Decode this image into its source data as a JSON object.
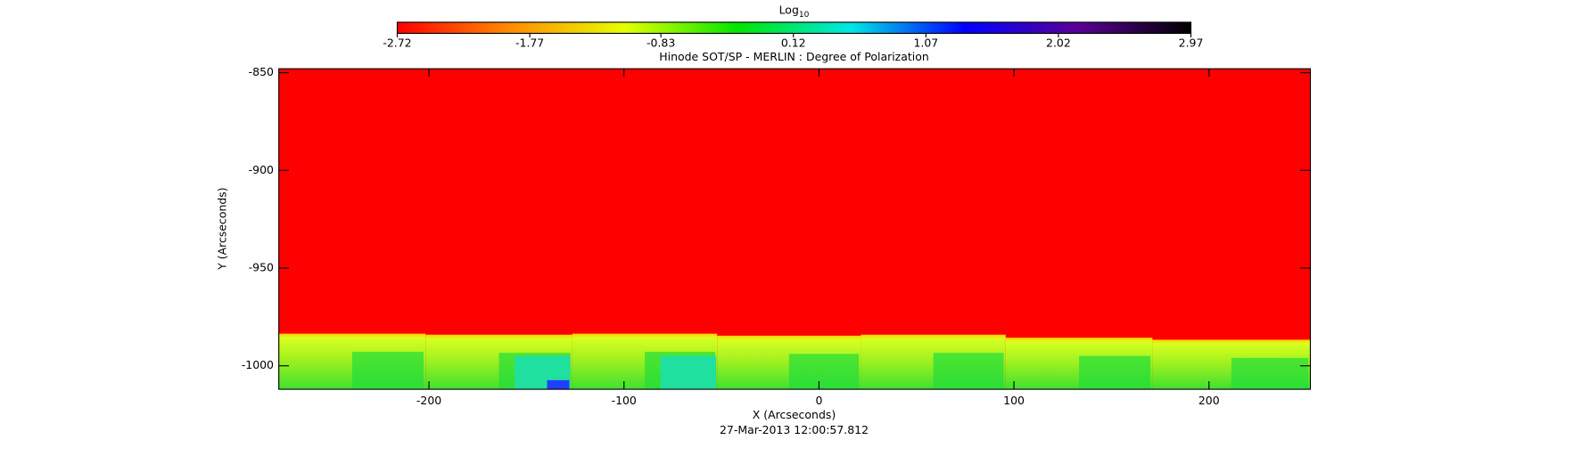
{
  "chart_data": {
    "type": "image",
    "title": "Hinode SOT/SP - MERLIN : Degree of Polarization",
    "xlabel": "X (Arcseconds)",
    "ylabel": "Y (Arcseconds)",
    "footer": "27-Mar-2013 12:00:57.812",
    "xlim": [
      -277,
      252
    ],
    "xticks": [
      -200,
      -100,
      0,
      100,
      200
    ],
    "ylim": [
      -848,
      -1012
    ],
    "yticks": [
      -850,
      -900,
      -950,
      -1000
    ],
    "colorbar": {
      "label": "Log",
      "label_sub": "10",
      "clim": [
        -2.72,
        2.97
      ],
      "ticks": [
        -2.72,
        -1.77,
        -0.83,
        0.12,
        1.07,
        2.02,
        2.97
      ],
      "colors": [
        "#ff0000",
        "#ff8c00",
        "#e6ff00",
        "#00e600",
        "#00e6e6",
        "#0000ff",
        "#5a0096",
        "#000000"
      ]
    }
  }
}
